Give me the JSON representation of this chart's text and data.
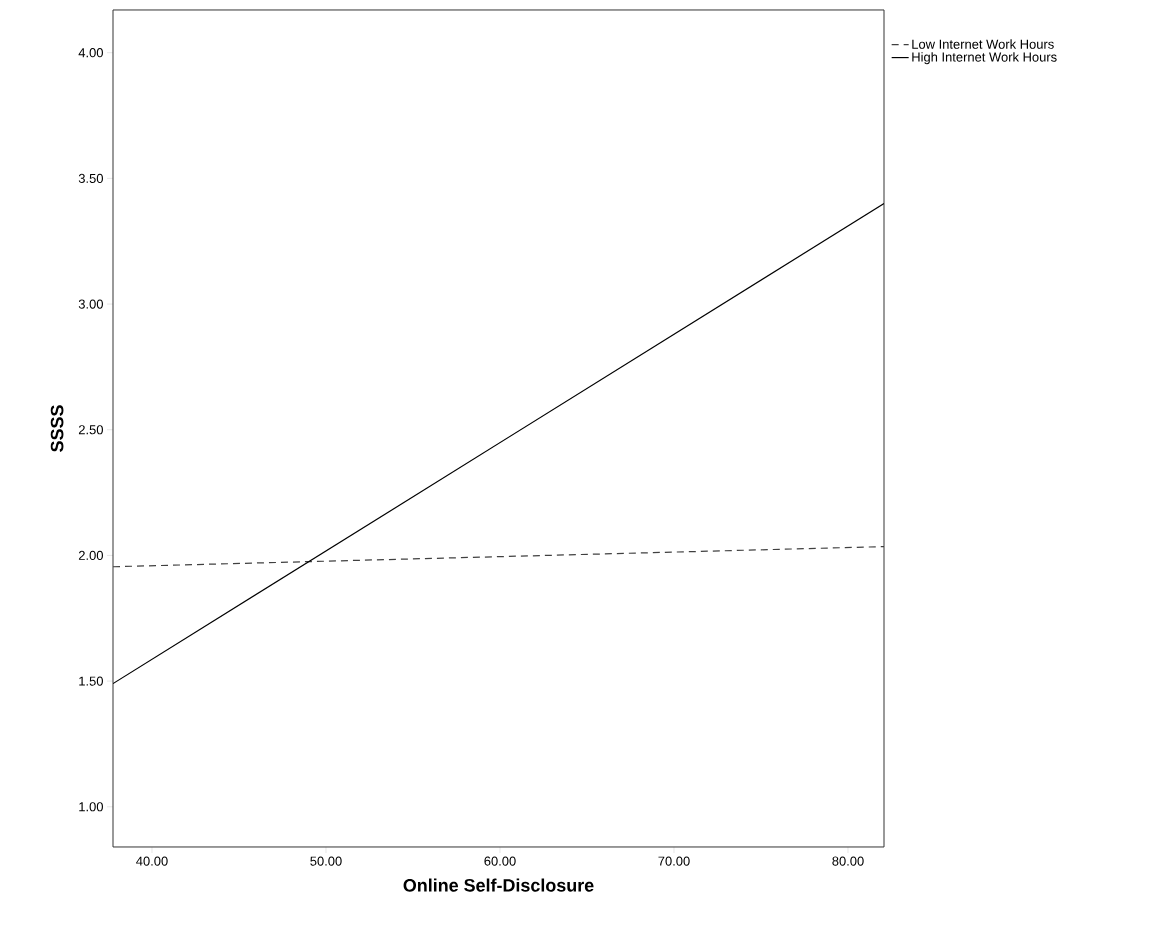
{
  "chart_data": {
    "type": "line",
    "xlabel": "Online Self-Disclosure",
    "ylabel": "SSSS",
    "xlim": [
      37.76,
      82.07
    ],
    "ylim": [
      0.84,
      4.17
    ],
    "xticks": [
      {
        "value": 40,
        "label": "40.00"
      },
      {
        "value": 50,
        "label": "50.00"
      },
      {
        "value": 60,
        "label": "60.00"
      },
      {
        "value": 70,
        "label": "70.00"
      },
      {
        "value": 80,
        "label": "80.00"
      }
    ],
    "yticks": [
      {
        "value": 1,
        "label": "1.00"
      },
      {
        "value": 1.5,
        "label": "1.50"
      },
      {
        "value": 2,
        "label": "2.00"
      },
      {
        "value": 2.5,
        "label": "2.50"
      },
      {
        "value": 3,
        "label": "3.00"
      },
      {
        "value": 3.5,
        "label": "3.50"
      },
      {
        "value": 4,
        "label": "4.00"
      }
    ],
    "x": [
      37.76,
      82.07
    ],
    "series": [
      {
        "name": "Low Internet Work Hours",
        "color": "#404040",
        "line_style": "dashed",
        "values": [
          1.955,
          2.035
        ]
      },
      {
        "name": "High Internet Work Hours",
        "color": "#000000",
        "line_style": "solid",
        "values": [
          1.49,
          3.4
        ]
      }
    ],
    "legend": "top right",
    "grid": false,
    "marker": "none"
  }
}
